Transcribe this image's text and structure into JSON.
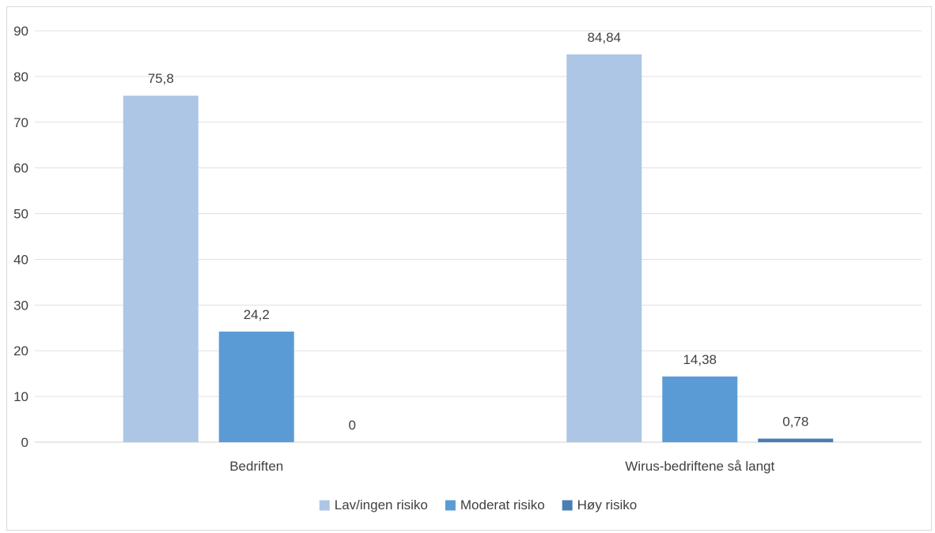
{
  "chart_data": {
    "type": "bar",
    "categories": [
      "Bedriften",
      "Wirus-bedriftene så langt"
    ],
    "series": [
      {
        "name": "Lav/ingen risiko",
        "values": [
          75.8,
          84.84
        ],
        "labels": [
          "75,8",
          "84,84"
        ],
        "color": "#adc6e5"
      },
      {
        "name": "Moderat risiko",
        "values": [
          24.2,
          14.38
        ],
        "labels": [
          "24,2",
          "14,38"
        ],
        "color": "#5b9bd5"
      },
      {
        "name": "Høy risiko",
        "values": [
          0,
          0.78
        ],
        "labels": [
          "0",
          "0,78"
        ],
        "color": "#4a7eb5"
      }
    ],
    "yticks": [
      "0",
      "10",
      "20",
      "30",
      "40",
      "50",
      "60",
      "70",
      "80",
      "90"
    ],
    "ylim": [
      0,
      90
    ],
    "grid": true,
    "legend_position": "bottom",
    "title": "",
    "xlabel": "",
    "ylabel": ""
  }
}
